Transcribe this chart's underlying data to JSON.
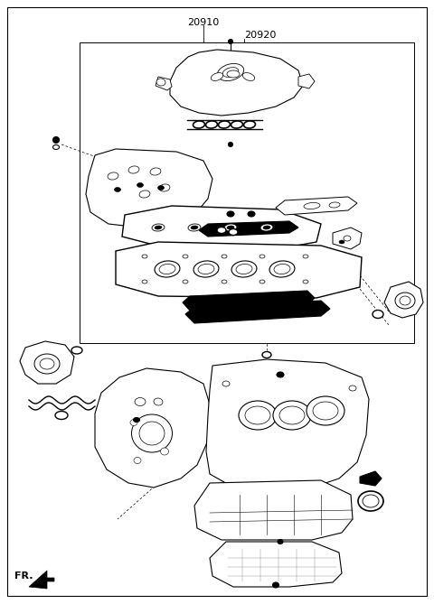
{
  "bg": "#ffffff",
  "lc": "#000000",
  "label_20910": "20910",
  "label_20920": "20920",
  "label_FR": "FR.",
  "fig_w": 4.8,
  "fig_h": 6.69,
  "dpi": 100
}
